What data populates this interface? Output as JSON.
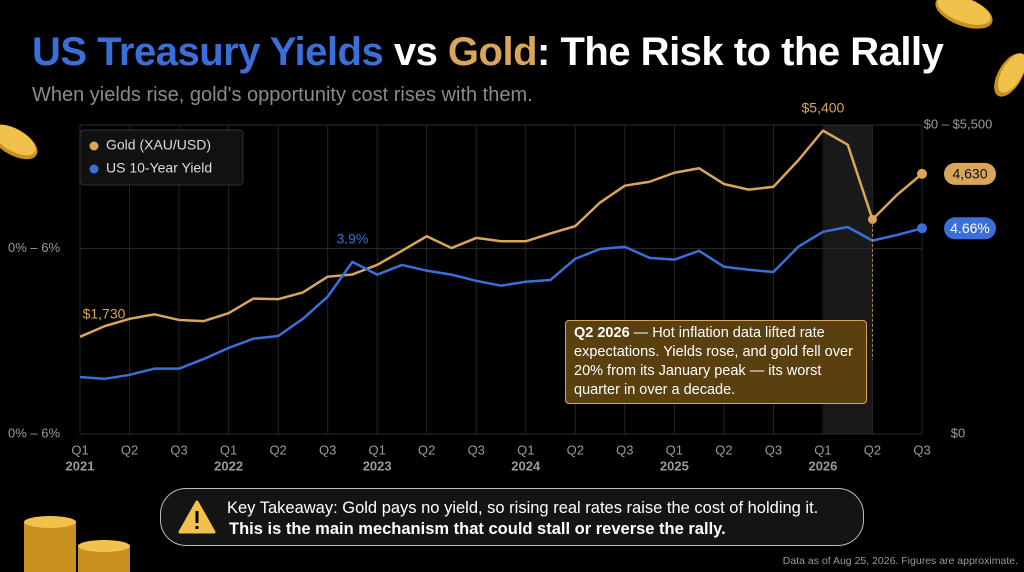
{
  "chart_data": {
    "type": "line",
    "title_parts": [
      "US Treasury Yields",
      " vs ",
      "Gold",
      ": The Risk to the Rally"
    ],
    "title_colors": [
      "#3a6fd8",
      "#ffffff",
      "#d9a55a",
      "#ffffff"
    ],
    "subtitle": "When yields rise, gold's opportunity cost rises with them.",
    "categories": [
      "Q1",
      null,
      "Q2",
      null,
      "Q3",
      null,
      "Q1",
      null,
      "Q2",
      null,
      "Q3",
      null,
      "Q1",
      null,
      "Q2",
      null,
      "Q3",
      null,
      "Q1",
      null,
      "Q2",
      null,
      "Q3",
      null,
      "Q1",
      null,
      "Q2",
      null,
      "Q3",
      null,
      "Q1",
      null,
      "Q2",
      null,
      "Q3"
    ],
    "years": [
      "2021",
      null,
      null,
      null,
      null,
      null,
      "2022",
      null,
      null,
      null,
      null,
      null,
      "2023",
      null,
      null,
      null,
      null,
      null,
      "2024",
      null,
      null,
      null,
      null,
      null,
      "2025",
      null,
      null,
      null,
      null,
      null,
      "2026",
      null,
      null,
      null,
      null
    ],
    "series": [
      {
        "name": "Gold (XAU/USD)",
        "color": "#d9a55a",
        "axis": "y2",
        "values": [
          1730,
          1920,
          2050,
          2130,
          2030,
          2010,
          2150,
          2410,
          2400,
          2520,
          2800,
          2840,
          3010,
          3260,
          3520,
          3310,
          3490,
          3430,
          3430,
          3570,
          3700,
          4120,
          4420,
          4490,
          4650,
          4730,
          4450,
          4350,
          4400,
          4870,
          5400,
          5150,
          3820,
          4260,
          4630
        ],
        "value_labels": [
          "$1,730",
          null,
          null,
          null,
          null,
          null,
          null,
          null,
          null,
          null,
          null,
          null,
          null,
          null,
          null,
          null,
          null,
          null,
          null,
          null,
          null,
          null,
          null,
          null,
          null,
          null,
          null,
          null,
          null,
          null,
          "$5,400",
          null,
          null,
          null,
          "4,630"
        ]
      },
      {
        "name": "US 10-Year Yield",
        "color": "#3a6fd8",
        "values": [
          1.29,
          1.25,
          1.34,
          1.48,
          1.48,
          1.7,
          1.95,
          2.16,
          2.22,
          2.61,
          3.11,
          3.9,
          3.61,
          3.83,
          3.7,
          3.61,
          3.47,
          3.36,
          3.45,
          3.49,
          3.97,
          4.19,
          4.24,
          3.99,
          3.95,
          4.15,
          3.79,
          3.72,
          3.67,
          4.24,
          4.58,
          4.69,
          4.38,
          4.51,
          4.66
        ],
        "value_labels": [
          null,
          null,
          null,
          null,
          null,
          null,
          null,
          null,
          null,
          null,
          null,
          "3.9%",
          null,
          null,
          null,
          null,
          null,
          null,
          null,
          null,
          null,
          null,
          null,
          null,
          null,
          null,
          null,
          null,
          null,
          null,
          null,
          null,
          null,
          null,
          "4.66%"
        ]
      }
    ],
    "ylim": [
      0,
      7
    ],
    "yticks": [
      {
        "value": 0,
        "label": "0% – 6%"
      },
      {
        "value": 4.2,
        "label": "0% – 6%"
      }
    ],
    "y2lim": [
      0,
      5500
    ],
    "y2ticks": [
      {
        "value": 0,
        "label": "$0"
      },
      {
        "value": 5500,
        "label": "$0 – $5,500"
      }
    ],
    "grid": true,
    "legend": "top-left",
    "annotation": {
      "heading": "Q2 2026",
      "text": " — Hot inflation data lifted rate expectations. Yields rose, and gold fell over 20% from its January peak — its worst quarter in over a decade."
    },
    "takeaway": [
      "Key Takeaway: Gold pays no yield, so rising real rates raise the cost of holding it.",
      "This is the main mechanism that could stall or reverse the rally."
    ],
    "footnote": "Data as of Aug 25, 2026. Figures are approximate."
  }
}
